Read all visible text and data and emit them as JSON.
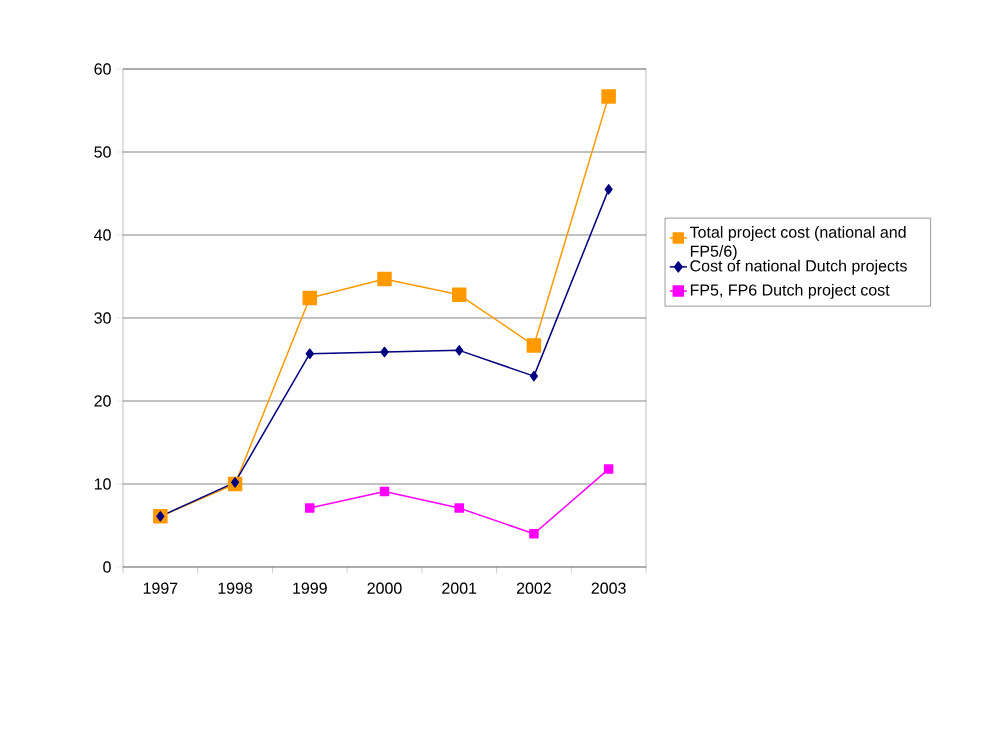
{
  "chart_data": {
    "type": "line",
    "categories": [
      "1997",
      "1998",
      "1999",
      "2000",
      "2001",
      "2002",
      "2003"
    ],
    "series": [
      {
        "name": "Total project cost (national and FP5/6)",
        "color": "#ff9900",
        "marker": "square",
        "values": [
          6.1,
          10.0,
          32.4,
          34.7,
          32.8,
          26.7,
          56.7
        ]
      },
      {
        "name": "Cost of national Dutch projects",
        "color": "#000080",
        "marker": "diamond",
        "values": [
          6.1,
          10.2,
          25.7,
          25.9,
          26.1,
          23.0,
          45.5
        ]
      },
      {
        "name": "FP5, FP6 Dutch project cost",
        "color": "#ff00ff",
        "marker": "square",
        "values": [
          null,
          null,
          7.1,
          9.1,
          7.1,
          4.0,
          11.8
        ]
      }
    ],
    "ylim": [
      0,
      60
    ],
    "yticks": [
      0,
      10,
      20,
      30,
      40,
      50,
      60
    ],
    "grid": "y",
    "legend": "right",
    "line_style": "solid"
  }
}
